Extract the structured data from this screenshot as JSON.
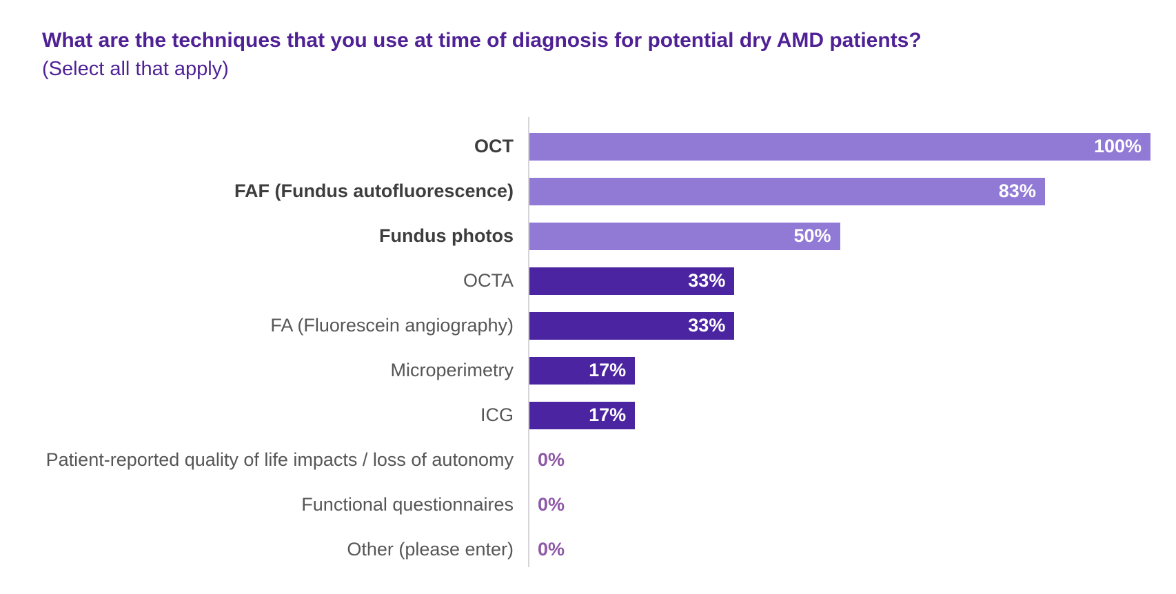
{
  "header": {
    "title": "What are the techniques that you use at time of diagnosis for potential dry AMD patients?",
    "subtitle": "(Select all that apply)"
  },
  "colors": {
    "title_text": "#4f2195",
    "bar_light": "#9179d6",
    "bar_dark": "#4b24a1",
    "zero_value_text": "#8e58a6",
    "category_bold_text": "#3d3d3d",
    "category_regular_text": "#565656",
    "value_inside_text": "#ffffff",
    "axis_line": "#d6d4d9"
  },
  "chart_data": {
    "type": "bar",
    "orientation": "horizontal",
    "title": "What are the techniques that you use at time of diagnosis for potential dry AMD patients?",
    "subtitle": "(Select all that apply)",
    "xlabel": "",
    "ylabel": "",
    "xlim": [
      0,
      100
    ],
    "unit": "%",
    "grid": false,
    "legend": false,
    "categories": [
      "OCT",
      "FAF (Fundus autofluorescence)",
      "Fundus photos",
      "OCTA",
      "FA (Fluorescein angiography)",
      "Microperimetry",
      "ICG",
      "Patient-reported quality of life impacts / loss of autonomy",
      "Functional questionnaires",
      "Other (please enter)"
    ],
    "values": [
      100,
      83,
      50,
      33,
      33,
      17,
      17,
      0,
      0,
      0
    ],
    "rows": [
      {
        "label": "OCT",
        "value": 100,
        "display": "100%",
        "label_bold": true,
        "bar_style": "light"
      },
      {
        "label": "FAF (Fundus autofluorescence)",
        "value": 83,
        "display": "83%",
        "label_bold": true,
        "bar_style": "light"
      },
      {
        "label": "Fundus photos",
        "value": 50,
        "display": "50%",
        "label_bold": true,
        "bar_style": "light"
      },
      {
        "label": "OCTA",
        "value": 33,
        "display": "33%",
        "label_bold": false,
        "bar_style": "dark"
      },
      {
        "label": "FA (Fluorescein angiography)",
        "value": 33,
        "display": "33%",
        "label_bold": false,
        "bar_style": "dark"
      },
      {
        "label": "Microperimetry",
        "value": 17,
        "display": "17%",
        "label_bold": false,
        "bar_style": "dark"
      },
      {
        "label": "ICG",
        "value": 17,
        "display": "17%",
        "label_bold": false,
        "bar_style": "dark"
      },
      {
        "label": "Patient-reported quality of life impacts / loss of autonomy",
        "value": 0,
        "display": "0%",
        "label_bold": false,
        "bar_style": "none"
      },
      {
        "label": "Functional questionnaires",
        "value": 0,
        "display": "0%",
        "label_bold": false,
        "bar_style": "none"
      },
      {
        "label": "Other (please enter)",
        "value": 0,
        "display": "0%",
        "label_bold": false,
        "bar_style": "none"
      }
    ]
  }
}
